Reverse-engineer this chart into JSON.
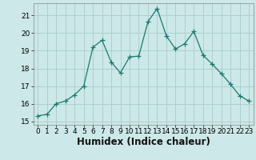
{
  "x": [
    0,
    1,
    2,
    3,
    4,
    5,
    6,
    7,
    8,
    9,
    10,
    11,
    12,
    13,
    14,
    15,
    16,
    17,
    18,
    19,
    20,
    21,
    22,
    23
  ],
  "y": [
    15.3,
    15.4,
    16.0,
    16.15,
    16.5,
    17.0,
    19.2,
    19.6,
    18.35,
    17.75,
    18.65,
    18.7,
    20.65,
    21.4,
    19.85,
    19.1,
    19.4,
    20.1,
    18.75,
    18.25,
    17.7,
    17.1,
    16.45,
    16.15
  ],
  "line_color": "#1a7a6e",
  "marker": "+",
  "marker_size": 4,
  "bg_color": "#cce8e8",
  "grid_color": "#aacccc",
  "xlabel": "Humidex (Indice chaleur)",
  "ylim": [
    14.8,
    21.7
  ],
  "xlim": [
    -0.5,
    23.5
  ],
  "yticks": [
    15,
    16,
    17,
    18,
    19,
    20,
    21
  ],
  "xticks": [
    0,
    1,
    2,
    3,
    4,
    5,
    6,
    7,
    8,
    9,
    10,
    11,
    12,
    13,
    14,
    15,
    16,
    17,
    18,
    19,
    20,
    21,
    22,
    23
  ],
  "tick_label_fontsize": 6.5,
  "xlabel_fontsize": 8.5
}
